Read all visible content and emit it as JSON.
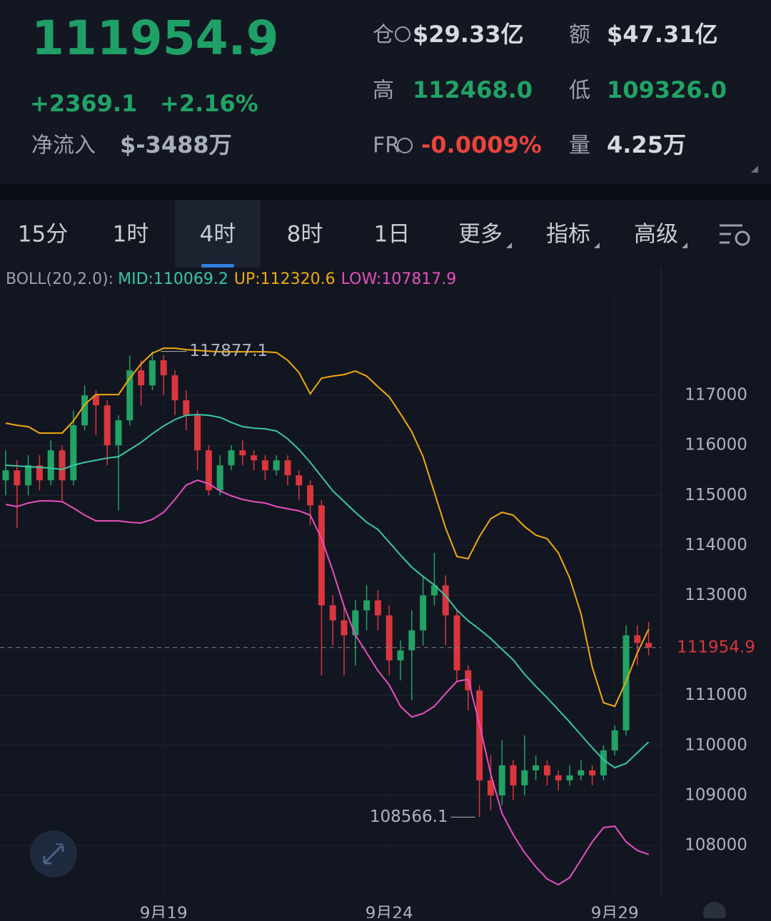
{
  "header": {
    "price": "111954.9",
    "change": "+2369.1",
    "change_pct": "+2.16%",
    "net_inflow_label": "净流入",
    "net_inflow": "$-3488万",
    "oi_label": "仓",
    "oi": "$29.33亿",
    "amount_label": "额",
    "amount": "$47.31亿",
    "high_label": "高",
    "high": "112468.0",
    "low_label": "低",
    "low": "109326.0",
    "fr_label": "FR",
    "fr": "-0.0009%",
    "volume_label": "量",
    "volume": "4.25万"
  },
  "tabs": [
    "15分",
    "1时",
    "4时",
    "8时",
    "1日",
    "更多",
    "指标",
    "高级"
  ],
  "active_tab": 2,
  "indicator": {
    "name": "BOLL(20,2.0):",
    "mid": "MID:110069.2",
    "up": "UP:112320.6",
    "low": "LOW:107817.9"
  },
  "chart_data": {
    "type": "candlestick",
    "up_color": "#21a366",
    "down_color": "#d9363e",
    "grid": true,
    "x": [
      null,
      null,
      null,
      null,
      null,
      null,
      null,
      null,
      null,
      null,
      null,
      null,
      null,
      null,
      "9月19",
      null,
      null,
      null,
      null,
      null,
      null,
      null,
      null,
      null,
      null,
      null,
      null,
      null,
      null,
      null,
      null,
      null,
      null,
      null,
      "9月24",
      null,
      null,
      null,
      null,
      null,
      null,
      null,
      null,
      null,
      null,
      null,
      null,
      null,
      null,
      null,
      null,
      null,
      null,
      null,
      "9月29",
      null,
      null,
      null
    ],
    "open": [
      115300,
      115500,
      115200,
      115600,
      115300,
      115900,
      115300,
      116400,
      117000,
      116800,
      116000,
      116500,
      117500,
      117200,
      117700,
      117400,
      116900,
      116600,
      115900,
      115100,
      115600,
      115900,
      115800,
      115700,
      115500,
      115700,
      115400,
      115200,
      114800,
      112800,
      112500,
      112200,
      112700,
      112900,
      112600,
      111700,
      111900,
      112300,
      113000,
      113200,
      112600,
      111500,
      111100,
      109300,
      109000,
      109600,
      109200,
      109500,
      109600,
      109400,
      109300,
      109400,
      109500,
      109400,
      109900,
      110300,
      112200,
      112050
    ],
    "high": [
      115900,
      115700,
      115800,
      115800,
      116100,
      116000,
      116700,
      117200,
      117100,
      116900,
      116600,
      117800,
      117700,
      117877.1,
      117800,
      117500,
      117100,
      116700,
      116000,
      115800,
      116000,
      116100,
      115900,
      115800,
      115800,
      115800,
      115500,
      115300,
      114900,
      113000,
      112800,
      112900,
      113200,
      113100,
      112800,
      112100,
      112700,
      113400,
      113850,
      113400,
      112700,
      111600,
      111200,
      109800,
      110100,
      109700,
      110200,
      109800,
      109700,
      109500,
      109600,
      109700,
      109600,
      110000,
      110400,
      112400,
      112400,
      112468
    ],
    "low": [
      115000,
      114350,
      115000,
      115100,
      115200,
      114900,
      115200,
      116300,
      116200,
      115600,
      114700,
      116400,
      116800,
      117100,
      117000,
      116600,
      116300,
      115500,
      115000,
      115000,
      115500,
      115600,
      115500,
      115300,
      115400,
      115200,
      114900,
      114400,
      111400,
      112000,
      111400,
      111600,
      112300,
      112300,
      111400,
      111300,
      110900,
      112000,
      112800,
      112000,
      111300,
      110700,
      108566.1,
      108700,
      108800,
      108900,
      109000,
      109300,
      109200,
      109100,
      109200,
      109300,
      109200,
      109300,
      109800,
      110200,
      111600,
      111800
    ],
    "close": [
      115500,
      115200,
      115600,
      115300,
      115900,
      115300,
      116400,
      117000,
      116800,
      116000,
      116500,
      117500,
      117200,
      117700,
      117400,
      116900,
      116600,
      115900,
      115100,
      115600,
      115900,
      115800,
      115700,
      115500,
      115700,
      115400,
      115200,
      114800,
      112800,
      112500,
      112200,
      112700,
      112900,
      112600,
      111700,
      111900,
      112300,
      113000,
      113200,
      112600,
      111500,
      111100,
      109300,
      109000,
      109600,
      109200,
      109500,
      109600,
      109400,
      109300,
      109400,
      109500,
      109400,
      109900,
      110300,
      112200,
      112050,
      111954.9
    ],
    "lines": [
      {
        "color": "#f0a90c",
        "values": [
          116444,
          116401,
          116372,
          116244,
          116244,
          116244,
          116486,
          116815,
          117014,
          117014,
          117014,
          117342,
          117628,
          117842,
          117942,
          117942,
          117913,
          117899,
          117884,
          117870,
          117870,
          117870,
          117870,
          117870,
          117856,
          117699,
          117456,
          117029,
          117342,
          117385,
          117414,
          117485,
          117385,
          117171,
          116971,
          116629,
          116272,
          115773,
          115060,
          114347,
          113776,
          113733,
          114175,
          114532,
          114660,
          114603,
          114375,
          114204,
          114133,
          113847,
          113348,
          112635,
          111565,
          110852,
          110781,
          111280,
          111850,
          112320.6
        ]
      },
      {
        "color": "#39c6a7",
        "values": [
          115602,
          115588,
          115573,
          115559,
          115545,
          115516,
          115602,
          115659,
          115702,
          115745,
          115773,
          115916,
          116058,
          116230,
          116387,
          116515,
          116601,
          116615,
          116601,
          116558,
          116458,
          116372,
          116344,
          116330,
          116287,
          116130,
          115916,
          115659,
          115374,
          115088,
          114874,
          114660,
          114461,
          114318,
          114061,
          113805,
          113562,
          113377,
          113205,
          112991,
          112706,
          112492,
          112321,
          112136,
          111922,
          111708,
          111422,
          111180,
          110952,
          110709,
          110467,
          110210,
          109953,
          109710,
          109553,
          109639,
          109853,
          110069.2
        ]
      },
      {
        "color": "#e84fc0",
        "values": [
          114817,
          114775,
          114846,
          114889,
          114889,
          114874,
          114746,
          114603,
          114489,
          114489,
          114489,
          114461,
          114447,
          114518,
          114660,
          114917,
          115203,
          115302,
          115231,
          115088,
          114989,
          114917,
          114874,
          114846,
          114775,
          114732,
          114689,
          114603,
          114133,
          113491,
          112777,
          112207,
          111850,
          111494,
          111209,
          110781,
          110567,
          110638,
          110781,
          111037,
          111280,
          111322,
          110424,
          109425,
          108641,
          108213,
          107856,
          107571,
          107328,
          107214,
          107357,
          107713,
          108070,
          108355,
          108384,
          108070,
          107899,
          107817.9
        ]
      }
    ],
    "ylim": [
      106930,
      119270
    ],
    "yticks": [
      108000,
      109000,
      110000,
      111000,
      113000,
      114000,
      115000,
      116000,
      117000
    ]
  }
}
